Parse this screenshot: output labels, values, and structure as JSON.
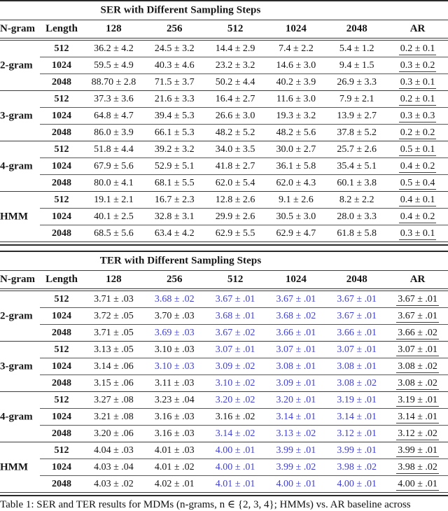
{
  "colors": {
    "highlight_blue": "#4141cd",
    "text": "#161616",
    "rule": "#3c3c3c"
  },
  "caption": {
    "text": "Table 1: SER and TER results for MDMs (n-grams, n ∈ {2, 3, 4}; HMMs) vs. AR baseline across"
  },
  "tables": [
    {
      "id": "ser",
      "title": "SER with Different Sampling Steps",
      "columns": [
        "N-gram",
        "Length",
        "128",
        "256",
        "512",
        "1024",
        "2048",
        "AR"
      ],
      "groups": [
        {
          "label": "2-gram",
          "rows": [
            {
              "length": "512",
              "values": [
                "36.2 ± 4.2",
                "24.5 ± 3.2",
                "14.4 ± 2.9",
                "7.4 ± 2.2",
                "5.4 ± 1.2",
                "0.2 ± 0.1"
              ],
              "blue": [
                0,
                0,
                0,
                0,
                0
              ]
            },
            {
              "length": "1024",
              "values": [
                "59.5 ± 4.9",
                "40.3 ± 4.6",
                "23.2 ± 3.2",
                "14.6 ± 3.0",
                "9.4 ± 1.5",
                "0.3 ± 0.2"
              ],
              "blue": [
                0,
                0,
                0,
                0,
                0
              ]
            },
            {
              "length": "2048",
              "values": [
                "88.70 ± 2.8",
                "71.5 ± 3.7",
                "50.2 ± 4.4",
                "40.2 ± 3.9",
                "26.9 ± 3.3",
                "0.3 ± 0.1"
              ],
              "blue": [
                0,
                0,
                0,
                0,
                0
              ]
            }
          ]
        },
        {
          "label": "3-gram",
          "rows": [
            {
              "length": "512",
              "values": [
                "37.3 ± 3.6",
                "21.6 ± 3.3",
                "16.4 ± 2.7",
                "11.6 ± 3.0",
                "7.9 ± 2.1",
                "0.2 ± 0.1"
              ],
              "blue": [
                0,
                0,
                0,
                0,
                0
              ]
            },
            {
              "length": "1024",
              "values": [
                "64.8 ± 4.7",
                "39.4 ± 5.3",
                "26.6 ± 3.0",
                "19.3 ± 3.2",
                "13.9 ± 2.7",
                "0.3 ± 0.3"
              ],
              "blue": [
                0,
                0,
                0,
                0,
                0
              ]
            },
            {
              "length": "2048",
              "values": [
                "86.0 ± 3.9",
                "66.1 ± 5.3",
                "48.2 ± 5.2",
                "48.2 ± 5.6",
                "37.8 ± 5.2",
                "0.2 ± 0.2"
              ],
              "blue": [
                0,
                0,
                0,
                0,
                0
              ]
            }
          ]
        },
        {
          "label": "4-gram",
          "rows": [
            {
              "length": "512",
              "values": [
                "51.8 ± 4.4",
                "39.2 ± 3.2",
                "34.0 ± 3.5",
                "30.0 ± 2.7",
                "25.7 ± 2.6",
                "0.5 ± 0.1"
              ],
              "blue": [
                0,
                0,
                0,
                0,
                0
              ]
            },
            {
              "length": "1024",
              "values": [
                "67.9 ± 5.6",
                "52.9 ± 5.1",
                "41.8 ± 2.7",
                "36.1 ± 5.8",
                "35.4 ± 5.1",
                "0.4 ± 0.2"
              ],
              "blue": [
                0,
                0,
                0,
                0,
                0
              ]
            },
            {
              "length": "2048",
              "values": [
                "80.0 ± 4.1",
                "68.1 ± 5.5",
                "62.0 ± 5.4",
                "62.0 ± 4.3",
                "60.1 ± 3.8",
                "0.5 ± 0.4"
              ],
              "blue": [
                0,
                0,
                0,
                0,
                0
              ]
            }
          ]
        },
        {
          "label": "HMM",
          "rows": [
            {
              "length": "512",
              "values": [
                "19.1 ± 2.1",
                "16.7 ± 2.3",
                "12.8 ± 2.6",
                "9.1 ± 2.6",
                "8.2 ± 2.2",
                "0.4 ± 0.1"
              ],
              "blue": [
                0,
                0,
                0,
                0,
                0
              ]
            },
            {
              "length": "1024",
              "values": [
                "40.1 ± 2.5",
                "32.8 ± 3.1",
                "29.9 ± 2.6",
                "30.5 ± 3.0",
                "28.0 ± 3.3",
                "0.4 ± 0.2"
              ],
              "blue": [
                0,
                0,
                0,
                0,
                0
              ]
            },
            {
              "length": "2048",
              "values": [
                "68.5 ± 5.6",
                "63.4 ± 4.2",
                "62.9 ± 5.5",
                "62.9 ± 4.7",
                "61.8 ± 5.8",
                "0.3 ± 0.1"
              ],
              "blue": [
                0,
                0,
                0,
                0,
                0
              ]
            }
          ]
        }
      ]
    },
    {
      "id": "ter",
      "title": "TER with Different Sampling Steps",
      "columns": [
        "N-gram",
        "Length",
        "128",
        "256",
        "512",
        "1024",
        "2048",
        "AR"
      ],
      "groups": [
        {
          "label": "2-gram",
          "rows": [
            {
              "length": "512",
              "values": [
                "3.71 ± .03",
                "3.68 ± .02",
                "3.67 ± .01",
                "3.67 ± .01",
                "3.67 ± .01",
                "3.67 ± .01"
              ],
              "blue": [
                0,
                1,
                1,
                1,
                1
              ]
            },
            {
              "length": "1024",
              "values": [
                "3.72 ± .05",
                "3.70 ± .03",
                "3.68 ± .01",
                "3.68 ± .02",
                "3.67 ± .01",
                "3.67 ± .01"
              ],
              "blue": [
                0,
                0,
                1,
                1,
                1
              ]
            },
            {
              "length": "2048",
              "values": [
                "3.71 ± .05",
                "3.69 ± .03",
                "3.67 ± .02",
                "3.66 ± .01",
                "3.66 ± .01",
                "3.66 ± .02"
              ],
              "blue": [
                0,
                1,
                1,
                1,
                1
              ]
            }
          ]
        },
        {
          "label": "3-gram",
          "rows": [
            {
              "length": "512",
              "values": [
                "3.13 ± .05",
                "3.10 ± .03",
                "3.07 ± .01",
                "3.07 ± .01",
                "3.07 ± .01",
                "3.07 ± .01"
              ],
              "blue": [
                0,
                0,
                1,
                1,
                1
              ]
            },
            {
              "length": "1024",
              "values": [
                "3.14 ± .06",
                "3.10 ± .03",
                "3.09 ± .02",
                "3.08 ± .01",
                "3.08 ± .01",
                "3.08 ± .02"
              ],
              "blue": [
                0,
                1,
                1,
                1,
                1
              ]
            },
            {
              "length": "2048",
              "values": [
                "3.15 ± .06",
                "3.11 ± .03",
                "3.10 ± .02",
                "3.09 ± .01",
                "3.08 ± .02",
                "3.08 ± .02"
              ],
              "blue": [
                0,
                0,
                1,
                1,
                1
              ]
            }
          ]
        },
        {
          "label": "4-gram",
          "rows": [
            {
              "length": "512",
              "values": [
                "3.27 ± .08",
                "3.23 ± .04",
                "3.20 ± .02",
                "3.20 ± .01",
                "3.19 ± .01",
                "3.19 ± .01"
              ],
              "blue": [
                0,
                0,
                1,
                1,
                1
              ]
            },
            {
              "length": "1024",
              "values": [
                "3.21 ± .08",
                "3.16 ± .03",
                "3.16 ± .02",
                "3.14 ± .01",
                "3.14 ± .01",
                "3.14 ± .01"
              ],
              "blue": [
                0,
                0,
                0,
                1,
                1
              ]
            },
            {
              "length": "2048",
              "values": [
                "3.20 ± .06",
                "3.16 ± .03",
                "3.14 ± .02",
                "3.13 ± .02",
                "3.12 ± .01",
                "3.12 ± .02"
              ],
              "blue": [
                0,
                0,
                1,
                1,
                1
              ]
            }
          ]
        },
        {
          "label": "HMM",
          "rows": [
            {
              "length": "512",
              "values": [
                "4.04 ± .03",
                "4.01 ± .03",
                "4.00 ± .01",
                "3.99 ± .01",
                "3.99 ± .01",
                "3.99 ± .01"
              ],
              "blue": [
                0,
                0,
                1,
                1,
                1
              ]
            },
            {
              "length": "1024",
              "values": [
                "4.03 ± .04",
                "4.01 ± .02",
                "4.00 ± .01",
                "3.99 ± .02",
                "3.98 ± .02",
                "3.98 ± .02"
              ],
              "blue": [
                0,
                0,
                1,
                1,
                1
              ]
            },
            {
              "length": "2048",
              "values": [
                "4.03 ± .02",
                "4.02 ± .01",
                "4.01 ± .01",
                "4.00 ± .01",
                "4.00 ± .01",
                "4.00 ± .01"
              ],
              "blue": [
                0,
                0,
                1,
                1,
                1
              ]
            }
          ]
        }
      ]
    }
  ]
}
